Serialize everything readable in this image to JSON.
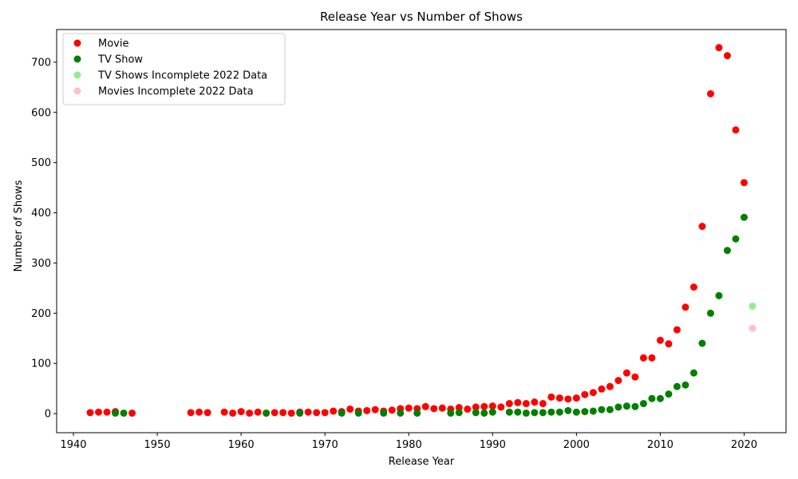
{
  "chart_data": {
    "type": "scatter",
    "title": "Release Year vs Number of Shows",
    "xlabel": "Release Year",
    "ylabel": "Number of Shows",
    "xlim": [
      1938,
      2025
    ],
    "ylim": [
      -38,
      765
    ],
    "xticks": [
      1940,
      1950,
      1960,
      1970,
      1980,
      1990,
      2000,
      2010,
      2020
    ],
    "yticks": [
      0,
      100,
      200,
      300,
      400,
      500,
      600,
      700
    ],
    "grid": false,
    "legend_position": "top-left",
    "series": [
      {
        "name": "Movie",
        "color": "#ff0000",
        "x": [
          1942,
          1943,
          1944,
          1945,
          1947,
          1954,
          1955,
          1956,
          1958,
          1959,
          1960,
          1961,
          1962,
          1963,
          1964,
          1965,
          1966,
          1967,
          1968,
          1969,
          1970,
          1971,
          1972,
          1973,
          1974,
          1975,
          1976,
          1977,
          1978,
          1979,
          1980,
          1981,
          1982,
          1983,
          1984,
          1985,
          1986,
          1987,
          1988,
          1989,
          1990,
          1991,
          1992,
          1993,
          1994,
          1995,
          1996,
          1997,
          1998,
          1999,
          2000,
          2001,
          2002,
          2003,
          2004,
          2005,
          2006,
          2007,
          2008,
          2009,
          2010,
          2011,
          2012,
          2013,
          2014,
          2015,
          2016,
          2017,
          2018,
          2019,
          2020
        ],
        "y": [
          2,
          3,
          3,
          4,
          1,
          2,
          3,
          2,
          3,
          1,
          4,
          1,
          3,
          1,
          2,
          2,
          1,
          3,
          3,
          2,
          2,
          5,
          4,
          9,
          5,
          6,
          8,
          5,
          7,
          10,
          11,
          10,
          14,
          10,
          11,
          9,
          12,
          9,
          13,
          14,
          15,
          13,
          20,
          22,
          20,
          23,
          20,
          33,
          31,
          29,
          31,
          38,
          42,
          49,
          54,
          66,
          81,
          73,
          111,
          111,
          146,
          139,
          167,
          212,
          252,
          373,
          637,
          729,
          713,
          565,
          460
        ]
      },
      {
        "name": "TV Show",
        "color": "#008000",
        "x": [
          1945,
          1946,
          1963,
          1967,
          1972,
          1974,
          1977,
          1979,
          1981,
          1985,
          1986,
          1988,
          1989,
          1990,
          1992,
          1993,
          1994,
          1995,
          1996,
          1997,
          1998,
          1999,
          2000,
          2001,
          2002,
          2003,
          2004,
          2005,
          2006,
          2007,
          2008,
          2009,
          2010,
          2011,
          2012,
          2013,
          2014,
          2015,
          2016,
          2017,
          2018,
          2019,
          2020
        ],
        "y": [
          1,
          1,
          1,
          1,
          1,
          1,
          1,
          1,
          1,
          1,
          2,
          2,
          1,
          3,
          3,
          3,
          1,
          2,
          2,
          3,
          3,
          6,
          3,
          4,
          5,
          8,
          8,
          13,
          15,
          14,
          20,
          30,
          30,
          39,
          54,
          57,
          81,
          140,
          200,
          235,
          325,
          348,
          391
        ]
      },
      {
        "name": "TV Shows Incomplete 2022 Data",
        "color": "#90ee90",
        "x": [
          2021
        ],
        "y": [
          214
        ]
      },
      {
        "name": "Movies Incomplete 2022 Data",
        "color": "#ffc0cb",
        "x": [
          2021
        ],
        "y": [
          170
        ]
      }
    ]
  }
}
